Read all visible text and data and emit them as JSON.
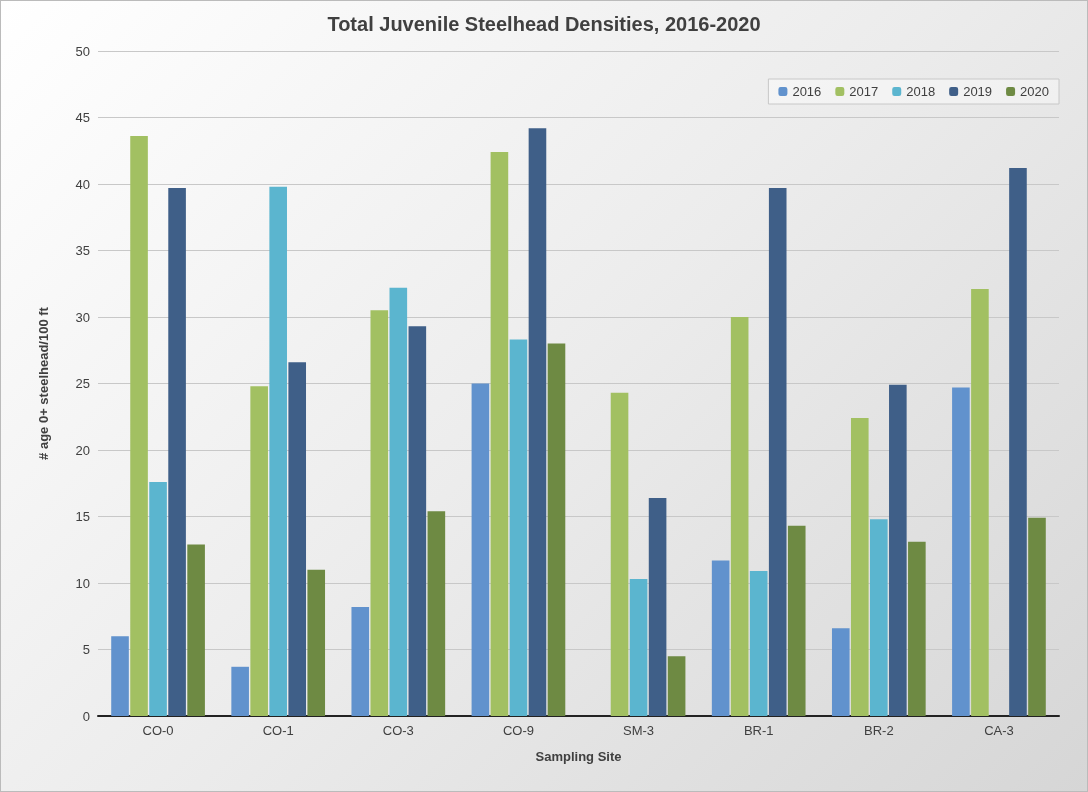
{
  "chart_data": {
    "type": "bar",
    "title": "Total Juvenile Steelhead Densities, 2016-2020",
    "xlabel": "Sampling Site",
    "ylabel": "# age 0+ steelhead/100 ft",
    "categories": [
      "CO-0",
      "CO-1",
      "CO-3",
      "CO-9",
      "SM-3",
      "BR-1",
      "BR-2",
      "CA-3"
    ],
    "series": [
      {
        "name": "2016",
        "color": "#6192cd",
        "values": [
          6.0,
          3.7,
          8.2,
          25.0,
          null,
          11.7,
          6.6,
          24.7
        ]
      },
      {
        "name": "2017",
        "color": "#a2c062",
        "values": [
          43.6,
          24.8,
          30.5,
          42.4,
          24.3,
          30.0,
          22.4,
          32.1
        ]
      },
      {
        "name": "2018",
        "color": "#5bb5cf",
        "values": [
          17.6,
          39.8,
          32.2,
          28.3,
          10.3,
          10.9,
          14.8,
          null
        ]
      },
      {
        "name": "2019",
        "color": "#3f5f88",
        "values": [
          39.7,
          26.6,
          29.3,
          44.2,
          16.4,
          39.7,
          24.9,
          41.2
        ]
      },
      {
        "name": "2020",
        "color": "#6e8a43",
        "values": [
          12.9,
          11.0,
          15.4,
          28.0,
          4.5,
          14.3,
          13.1,
          14.9
        ]
      }
    ],
    "ylim": [
      0,
      50
    ],
    "yticks": [
      0,
      5,
      10,
      15,
      20,
      25,
      30,
      35,
      40,
      45,
      50
    ],
    "grid": "y",
    "legend": "top right"
  }
}
